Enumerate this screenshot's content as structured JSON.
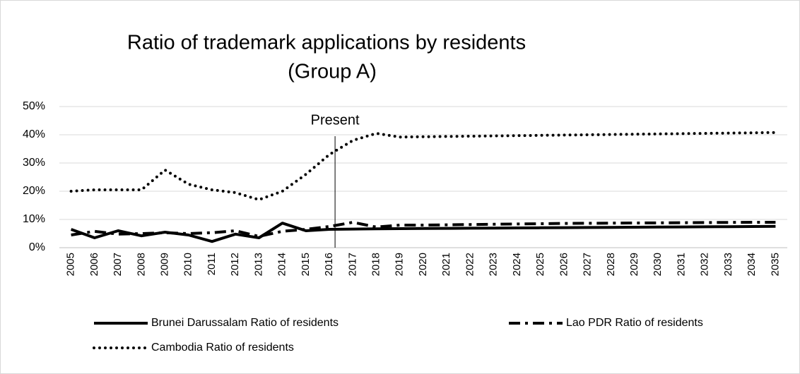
{
  "chart_data": {
    "type": "line",
    "title": [
      "Ratio of trademark applications by residents",
      "(Group A)"
    ],
    "categories": [
      "2005",
      "2006",
      "2007",
      "2008",
      "2009",
      "2010",
      "2011",
      "2012",
      "2013",
      "2014",
      "2015",
      "2016",
      "2017",
      "2018",
      "2019",
      "2020",
      "2021",
      "2022",
      "2023",
      "2024",
      "2025",
      "2026",
      "2027",
      "2028",
      "2029",
      "2030",
      "2031",
      "2032",
      "2033",
      "2034",
      "2035"
    ],
    "series": [
      {
        "name": "Brunei Darussalam Ratio of residents",
        "color": "#000000",
        "style": "solid",
        "values": [
          6.5,
          3.5,
          6,
          4.2,
          5.5,
          4.5,
          2.2,
          4.8,
          3.5,
          8.7,
          6,
          6.5,
          6.6,
          6.7,
          6.75,
          6.8,
          6.85,
          6.9,
          6.95,
          7,
          7.05,
          7.1,
          7.15,
          7.2,
          7.25,
          7.3,
          7.35,
          7.4,
          7.45,
          7.5,
          7.55
        ]
      },
      {
        "name": "Lao PDR Ratio of residents",
        "color": "#000000",
        "style": "dashdot",
        "values": [
          4.5,
          5.8,
          4.8,
          5,
          5.3,
          5,
          5.3,
          6,
          4,
          5.8,
          6.5,
          7.5,
          9,
          7.3,
          8,
          8,
          8.1,
          8.2,
          8.3,
          8.4,
          8.5,
          8.6,
          8.65,
          8.7,
          8.75,
          8.8,
          8.85,
          8.9,
          8.95,
          9,
          9
        ]
      },
      {
        "name": "Cambodia Ratio of residents",
        "color": "#000000",
        "style": "dotted",
        "values": [
          20,
          20.5,
          20.5,
          20.5,
          27.5,
          22.5,
          20.5,
          19.5,
          17,
          20,
          26,
          33,
          38,
          40.5,
          39.2,
          39.3,
          39.4,
          39.5,
          39.6,
          39.7,
          39.8,
          39.9,
          40,
          40.1,
          40.2,
          40.3,
          40.4,
          40.5,
          40.6,
          40.7,
          40.8
        ]
      }
    ],
    "ylim": [
      0,
      50
    ],
    "yticks": [
      {
        "value": 0,
        "label": "0%"
      },
      {
        "value": 10,
        "label": "10%"
      },
      {
        "value": 20,
        "label": "20%"
      },
      {
        "value": 30,
        "label": "30%"
      },
      {
        "value": 40,
        "label": "40%"
      },
      {
        "value": 50,
        "label": "50%"
      }
    ],
    "grid": true,
    "annotations": [
      {
        "category": "2016",
        "text": "Present"
      }
    ],
    "legend": "bottom"
  }
}
